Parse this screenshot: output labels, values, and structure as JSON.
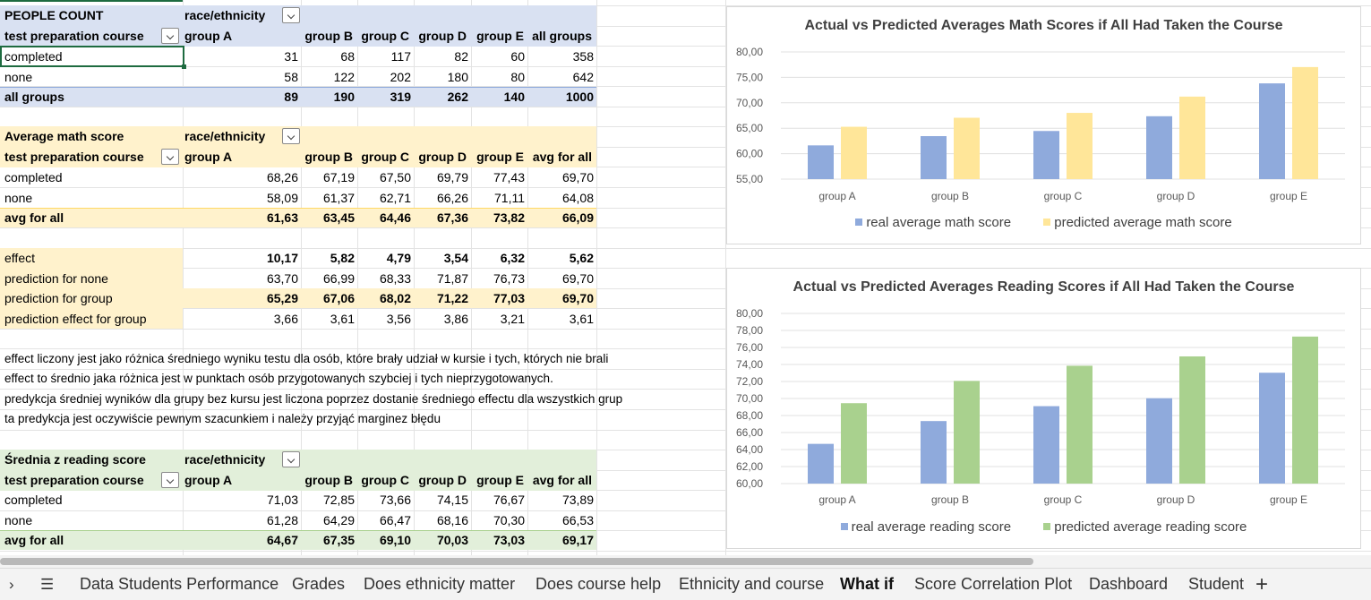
{
  "pivots": {
    "people": {
      "title": "PEOPLE COUNT",
      "col_field": "race/ethnicity",
      "row_field": "test preparation course",
      "headers": [
        "group A",
        "group B",
        "group C",
        "group D",
        "group E",
        "all groups"
      ],
      "rows": [
        {
          "label": "completed",
          "values": [
            "31",
            "68",
            "117",
            "82",
            "60",
            "358"
          ]
        },
        {
          "label": "none",
          "values": [
            "58",
            "122",
            "202",
            "180",
            "80",
            "642"
          ]
        }
      ],
      "total": {
        "label": "all groups",
        "values": [
          "89",
          "190",
          "319",
          "262",
          "140",
          "1000"
        ]
      }
    },
    "math": {
      "title": "Average math score",
      "col_field": "race/ethnicity",
      "row_field": "test preparation course",
      "headers": [
        "group A",
        "group B",
        "group C",
        "group D",
        "group E",
        "avg for all"
      ],
      "rows": [
        {
          "label": "completed",
          "values": [
            "68,26",
            "67,19",
            "67,50",
            "69,79",
            "77,43",
            "69,70"
          ]
        },
        {
          "label": "none",
          "values": [
            "58,09",
            "61,37",
            "62,71",
            "66,26",
            "71,11",
            "64,08"
          ]
        }
      ],
      "total": {
        "label": "avg for all",
        "values": [
          "61,63",
          "63,45",
          "64,46",
          "67,36",
          "73,82",
          "66,09"
        ]
      }
    },
    "effects": [
      {
        "label": "effect",
        "values": [
          "10,17",
          "5,82",
          "4,79",
          "3,54",
          "6,32",
          "5,62"
        ]
      },
      {
        "label": "prediction for none",
        "values": [
          "63,70",
          "66,99",
          "68,33",
          "71,87",
          "76,73",
          "69,70"
        ]
      },
      {
        "label": "prediction for group",
        "values": [
          "65,29",
          "67,06",
          "68,02",
          "71,22",
          "77,03",
          "69,70"
        ]
      },
      {
        "label": "prediction effect for group",
        "values": [
          "3,66",
          "3,61",
          "3,56",
          "3,86",
          "3,21",
          "3,61"
        ]
      }
    ],
    "notes": [
      "effect liczony jest jako różnica średniego wyniku testu dla osób, które brały udział w kursie i tych, których nie brali",
      "effect to średnio jaka różnica jest w punktach osób przygotowanych szybciej i tych nieprzygotowanych.",
      "predykcja średniej wyników dla grupy bez kursu jest liczona poprzez dostanie średniego effectu dla wszystkich grup",
      "ta predykcja jest oczywiście pewnym szacunkiem i należy przyjąć marginez błędu"
    ],
    "reading": {
      "title": "Średnia z reading score",
      "col_field": "race/ethnicity",
      "row_field": "test preparation course",
      "headers": [
        "group A",
        "group B",
        "group C",
        "group D",
        "group E",
        "avg for all"
      ],
      "rows": [
        {
          "label": "completed",
          "values": [
            "71,03",
            "72,85",
            "73,66",
            "74,15",
            "76,67",
            "73,89"
          ]
        },
        {
          "label": "none",
          "values": [
            "61,28",
            "64,29",
            "66,47",
            "68,16",
            "70,30",
            "66,53"
          ]
        }
      ],
      "total": {
        "label": "avg for all",
        "values": [
          "64,67",
          "67,35",
          "69,10",
          "70,03",
          "73,03",
          "69,17"
        ]
      }
    }
  },
  "chart_data": [
    {
      "type": "bar",
      "title": "Actual vs Predicted Averages Math Scores if All Had Taken the Course",
      "categories": [
        "group A",
        "group B",
        "group C",
        "group D",
        "group E"
      ],
      "series": [
        {
          "name": "real average math score",
          "color": "#8faadc",
          "values": [
            61.63,
            63.45,
            64.46,
            67.36,
            73.82
          ]
        },
        {
          "name": "predicted average math score",
          "color": "#ffe699",
          "values": [
            65.29,
            67.06,
            68.02,
            71.22,
            77.03
          ]
        }
      ],
      "ylim": [
        55,
        80
      ],
      "ticks": [
        "55,00",
        "60,00",
        "65,00",
        "70,00",
        "75,00",
        "80,00"
      ],
      "grid": true,
      "legend": "bottom"
    },
    {
      "type": "bar",
      "title": "Actual vs Predicted Averages Reading Scores if All Had Taken the Course",
      "categories": [
        "group A",
        "group B",
        "group C",
        "group D",
        "group E"
      ],
      "series": [
        {
          "name": "real average reading score",
          "color": "#8faadc",
          "values": [
            64.67,
            67.35,
            69.1,
            70.03,
            73.03
          ]
        },
        {
          "name": "predicted average reading score",
          "color": "#a9d18e",
          "values": [
            69.45,
            72.07,
            73.85,
            74.95,
            77.28
          ]
        }
      ],
      "ylim": [
        60,
        80
      ],
      "ticks": [
        "60,00",
        "62,00",
        "64,00",
        "66,00",
        "68,00",
        "70,00",
        "72,00",
        "74,00",
        "76,00",
        "78,00",
        "80,00"
      ],
      "grid": true,
      "legend": "bottom"
    }
  ],
  "tabs": {
    "more_label": "›",
    "menu_label": "☰",
    "add_label": "+",
    "sheets": [
      "Data Students Performance",
      "Grades",
      "Does ethnicity matter",
      "Does course help",
      "Ethnicity and course",
      "What if",
      "Score Correlation Plot",
      "Dashboard",
      "Student"
    ],
    "active": "What if"
  },
  "colors": {
    "blue_band": "#d9e1f2",
    "yellow_band": "#fff2cc",
    "green_band": "#e2efda",
    "selection": "#1e6b40"
  }
}
